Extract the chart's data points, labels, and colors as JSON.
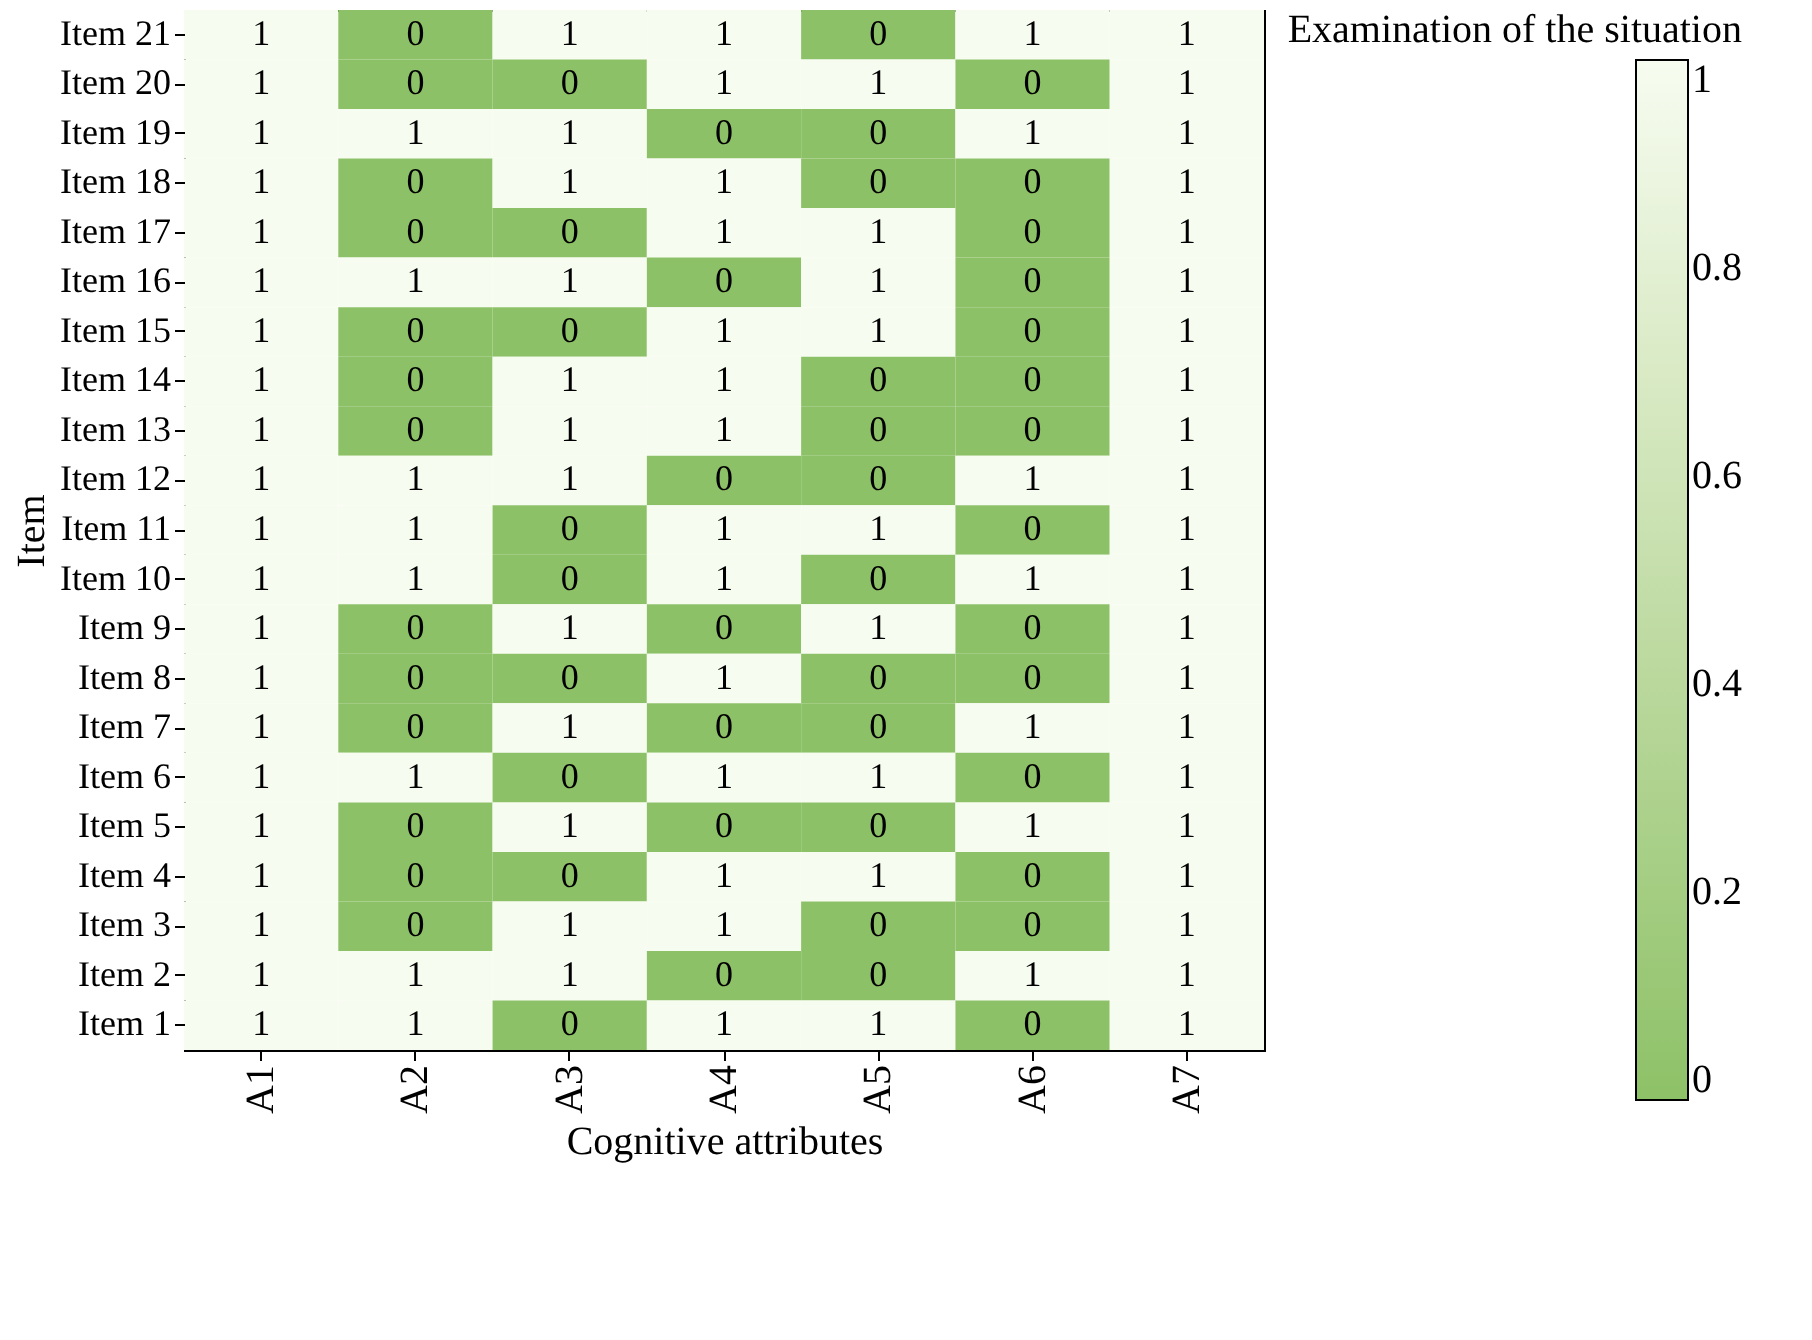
{
  "chart_data": {
    "type": "heatmap",
    "xlabel": "Cognitive attributes",
    "ylabel": "Item",
    "clabel": "Examination of the situation",
    "categories": [
      "A1",
      "A2",
      "A3",
      "A4",
      "A5",
      "A6",
      "A7"
    ],
    "y_categories": [
      "Item 21",
      "Item 20",
      "Item 19",
      "Item 18",
      "Item 17",
      "Item 16",
      "Item 15",
      "Item 14",
      "Item 13",
      "Item 12",
      "Item 11",
      "Item 10",
      "Item 9",
      "Item 8",
      "Item 7",
      "Item 6",
      "Item 5",
      "Item 4",
      "Item 3",
      "Item 2",
      "Item 1"
    ],
    "cells": [
      [
        1,
        0,
        1,
        1,
        0,
        1,
        1
      ],
      [
        1,
        0,
        0,
        1,
        1,
        0,
        1
      ],
      [
        1,
        1,
        1,
        0,
        0,
        1,
        1
      ],
      [
        1,
        0,
        1,
        1,
        0,
        0,
        1
      ],
      [
        1,
        0,
        0,
        1,
        1,
        0,
        1
      ],
      [
        1,
        1,
        1,
        0,
        1,
        0,
        1
      ],
      [
        1,
        0,
        0,
        1,
        1,
        0,
        1
      ],
      [
        1,
        0,
        1,
        1,
        0,
        0,
        1
      ],
      [
        1,
        0,
        1,
        1,
        0,
        0,
        1
      ],
      [
        1,
        1,
        1,
        0,
        0,
        1,
        1
      ],
      [
        1,
        1,
        0,
        1,
        1,
        0,
        1
      ],
      [
        1,
        1,
        0,
        1,
        0,
        1,
        1
      ],
      [
        1,
        0,
        1,
        0,
        1,
        0,
        1
      ],
      [
        1,
        0,
        0,
        1,
        0,
        0,
        1
      ],
      [
        1,
        0,
        1,
        0,
        0,
        1,
        1
      ],
      [
        1,
        1,
        0,
        1,
        1,
        0,
        1
      ],
      [
        1,
        0,
        1,
        0,
        0,
        1,
        1
      ],
      [
        1,
        0,
        0,
        1,
        1,
        0,
        1
      ],
      [
        1,
        0,
        1,
        1,
        0,
        0,
        1
      ],
      [
        1,
        1,
        1,
        0,
        0,
        1,
        1
      ],
      [
        1,
        1,
        0,
        1,
        1,
        0,
        1
      ]
    ],
    "colors": [
      "#8dc167",
      "#f7fcf0"
    ],
    "clim": [
      0,
      1
    ],
    "cticks": [
      0,
      0.2,
      0.4,
      0.6,
      0.8,
      1
    ],
    "data_labels": true,
    "grid": false
  }
}
